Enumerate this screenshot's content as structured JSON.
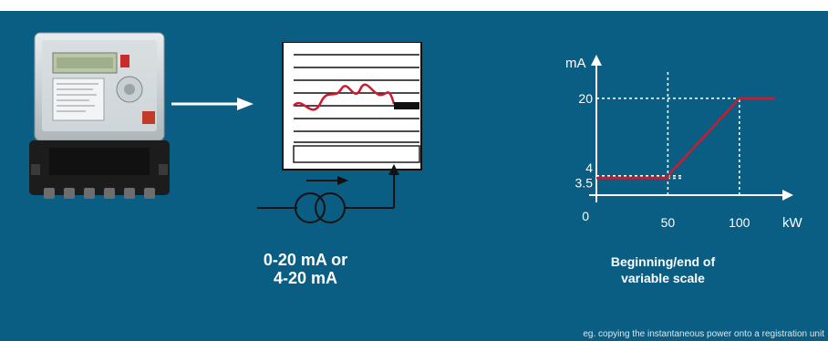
{
  "captions": {
    "current_range_line1": "0-20 mA or",
    "current_range_line2": "4-20 mA",
    "scale_line1": "Beginning/end of",
    "scale_line2": "variable scale"
  },
  "footnote": "eg. copying the instantaneous power onto a registration unit",
  "colors": {
    "background": "#0a5e83",
    "signal_line": "#cc1a2e",
    "foreground": "#ffffff"
  },
  "icons": [
    "electricity-meter-icon",
    "arrow-right-icon",
    "recorder-chart-icon",
    "current-transformer-icon"
  ],
  "chart_data": {
    "type": "line",
    "title": "",
    "xlabel": "kW",
    "ylabel": "mA",
    "x_ticks": [
      0,
      50,
      100
    ],
    "x_tick_labels": [
      "0",
      "50",
      "100"
    ],
    "y_ticks": [
      3.5,
      4,
      20
    ],
    "y_tick_labels": [
      "3.5",
      "4",
      "20"
    ],
    "xlim": [
      0,
      125
    ],
    "ylim": [
      0,
      26
    ],
    "series": [
      {
        "x": [
          0,
          50,
          50,
          100,
          125
        ],
        "y": [
          3.5,
          3.5,
          4,
          20,
          20
        ]
      }
    ],
    "guides": [
      {
        "from": [
          0,
          20
        ],
        "to": [
          125,
          20
        ]
      },
      {
        "from": [
          0,
          4
        ],
        "to": [
          60,
          4
        ]
      },
      {
        "from": [
          0,
          3.5
        ],
        "to": [
          60,
          3.5
        ]
      },
      {
        "from": [
          50,
          0
        ],
        "to": [
          50,
          26
        ]
      },
      {
        "from": [
          100,
          0
        ],
        "to": [
          100,
          20
        ]
      }
    ]
  }
}
